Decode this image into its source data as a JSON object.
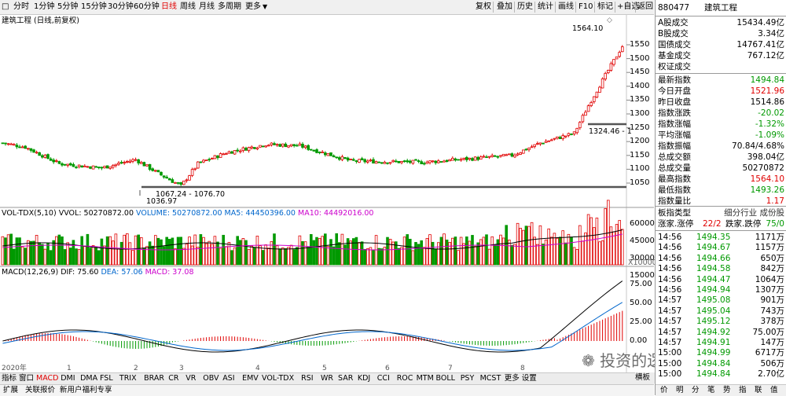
{
  "toolbar": {
    "left": [
      "分时",
      "1分钟",
      "5分钟",
      "15分钟",
      "30分钟",
      "60分钟",
      "日线",
      "周线",
      "月线",
      "多周期",
      "更多"
    ],
    "active": "日线",
    "right": [
      "复权",
      "叠加",
      "历史",
      "统计",
      "画线",
      "F10",
      "标记",
      "+自选",
      "返回"
    ]
  },
  "main_panel": {
    "title": "建筑工程 (日线,前复权)",
    "annotations": {
      "high": "1564.10",
      "low": "1036.97",
      "range": "1067.24 - 1076.70",
      "mid": "1324.46 - 1"
    },
    "y_ticks": [
      "1550",
      "1500",
      "1450",
      "1400",
      "1350",
      "1300",
      "1250",
      "1200",
      "1150",
      "1100",
      "1050"
    ]
  },
  "vol_panel": {
    "title_a": "VOL-TDX(5,10)",
    "vvol": "VVOL: 50270872.00",
    "volume": "VOLUME: 50270872.00",
    "ma5": "MA5: 44450396.00",
    "ma10": "MA10: 44492016.00",
    "y_ticks": [
      "60000",
      "45000",
      "30000",
      "15000"
    ],
    "unit": "X10000"
  },
  "macd_panel": {
    "title": "MACD(12,26,9)",
    "dif": "DIF: 75.60",
    "dea": "DEA: 57.06",
    "macd": "MACD: 37.08",
    "y_ticks": [
      "75.00",
      "50.00",
      "25.00",
      "0.00"
    ]
  },
  "x_axis": [
    "2020年",
    "1",
    "2",
    "3",
    "4",
    "5",
    "6",
    "7",
    "8"
  ],
  "tabs": [
    "指标",
    "窗口",
    "MACD",
    "DMI",
    "DMA",
    "FSL",
    "TRIX",
    "BRAR",
    "CR",
    "VR",
    "OBV",
    "ASI",
    "EMV",
    "VOL-TDX",
    "RSI",
    "WR",
    "SAR",
    "KDJ",
    "CCI",
    "ROC",
    "MTM",
    "BOLL",
    "PSY",
    "MCST",
    "更多",
    "设置"
  ],
  "active_tab": "MACD",
  "tabs2": [
    "扩展",
    "关联报价",
    "新用户福利专享"
  ],
  "right_panel": {
    "code": "880477",
    "name": "建筑工程",
    "trades": [
      {
        "label": "A股成交",
        "value": "15434.49亿"
      },
      {
        "label": "B股成交",
        "value": "3.34亿"
      },
      {
        "label": "国债成交",
        "value": "14767.41亿"
      },
      {
        "label": "基金成交",
        "value": "767.12亿"
      },
      {
        "label": "权证成交",
        "value": ""
      }
    ],
    "stats": [
      {
        "label": "最新指数",
        "value": "1494.84",
        "color": "green"
      },
      {
        "label": "今日开盘",
        "value": "1521.96",
        "color": "red"
      },
      {
        "label": "昨日收盘",
        "value": "1514.86",
        "color": "black"
      },
      {
        "label": "指数涨跌",
        "value": "-20.02",
        "color": "green"
      },
      {
        "label": "指数涨幅",
        "value": "-1.32%",
        "color": "green"
      },
      {
        "label": "平均涨幅",
        "value": "-1.09%",
        "color": "green"
      },
      {
        "label": "指数振幅",
        "value": "70.84/4.68%",
        "color": "black"
      },
      {
        "label": "总成交额",
        "value": "398.04亿",
        "color": "black"
      },
      {
        "label": "总成交量",
        "value": "50270872",
        "color": "black"
      },
      {
        "label": "最高指数",
        "value": "1564.10",
        "color": "red"
      },
      {
        "label": "最低指数",
        "value": "1493.26",
        "color": "green"
      },
      {
        "label": "指数量比",
        "value": "1.17",
        "color": "red"
      }
    ],
    "type_row": {
      "label": "板指类型",
      "value": "细分行业 成份股"
    },
    "updown_row": {
      "a": "涨家.涨停",
      "b": "22/2",
      "c": "跌家.跌停",
      "d": "75/0"
    },
    "ticks": [
      {
        "time": "14:56",
        "price": "1494.35",
        "vol": "1171万"
      },
      {
        "time": "14:56",
        "price": "1494.67",
        "vol": "1157万"
      },
      {
        "time": "14:56",
        "price": "1494.66",
        "vol": "650万"
      },
      {
        "time": "14:56",
        "price": "1494.58",
        "vol": "842万"
      },
      {
        "time": "14:56",
        "price": "1494.47",
        "vol": "1064万"
      },
      {
        "time": "14:56",
        "price": "1494.94",
        "vol": "1307万"
      },
      {
        "time": "14:57",
        "price": "1495.08",
        "vol": "901万"
      },
      {
        "time": "14:57",
        "price": "1495.04",
        "vol": "743万"
      },
      {
        "time": "14:57",
        "price": "1495.12",
        "vol": "378万"
      },
      {
        "time": "14:57",
        "price": "1494.92",
        "vol": "75.00万"
      },
      {
        "time": "14:57",
        "price": "1494.91",
        "vol": "147万"
      },
      {
        "time": "15:00",
        "price": "1494.99",
        "vol": "6717万"
      },
      {
        "time": "15:00",
        "price": "1494.84",
        "vol": "506万"
      },
      {
        "time": "15:00",
        "price": "1494.84",
        "vol": "2.70亿"
      }
    ],
    "bottom": [
      "价",
      "明",
      "分",
      "笔",
      "势",
      "指",
      "联",
      "值"
    ],
    "more": "横板"
  },
  "watermark": "投资的逻辑与认知",
  "colors": {
    "up": "#e00000",
    "down": "#009900",
    "ma5": "#000000",
    "ma10": "#cc00cc",
    "dif": "#000000",
    "dea": "#0066cc"
  }
}
